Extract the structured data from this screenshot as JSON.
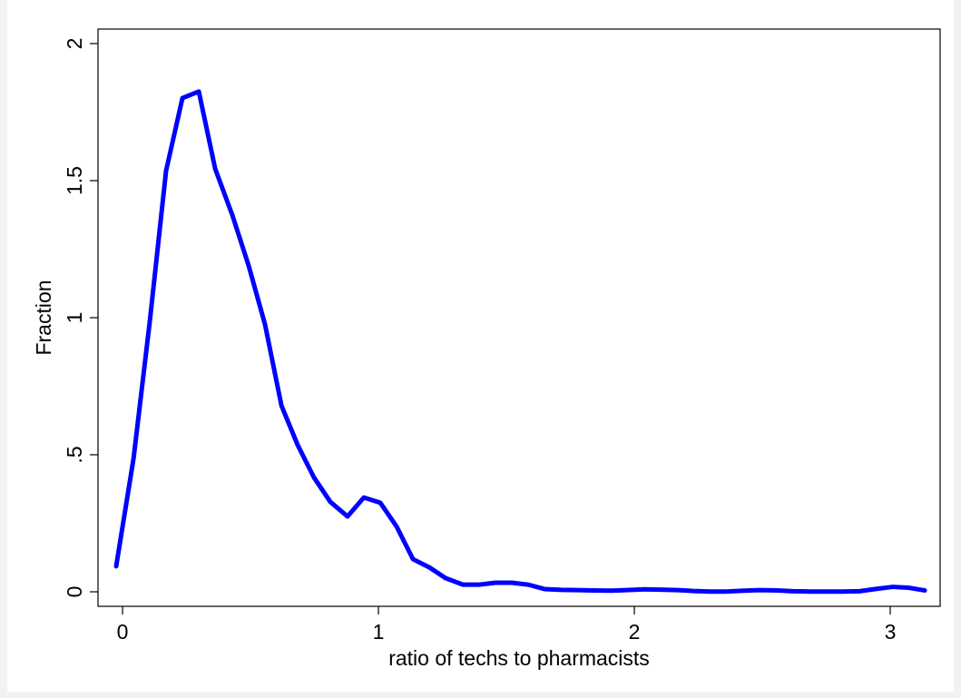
{
  "chart_data": {
    "type": "line",
    "xlabel": "ratio of techs to pharmacists",
    "ylabel": "Fraction",
    "x": [
      -0.025,
      0.043,
      0.106,
      0.17,
      0.234,
      0.298,
      0.362,
      0.429,
      0.493,
      0.557,
      0.621,
      0.684,
      0.748,
      0.812,
      0.879,
      0.943,
      1.007,
      1.071,
      1.135,
      1.199,
      1.262,
      1.33,
      1.394,
      1.457,
      1.521,
      1.585,
      1.649,
      1.716,
      1.78,
      1.84,
      1.91,
      1.97,
      2.04,
      2.1,
      2.17,
      2.23,
      2.3,
      2.36,
      2.43,
      2.49,
      2.56,
      2.62,
      2.68,
      2.75,
      2.81,
      2.88,
      2.94,
      3.01,
      3.07,
      3.135
    ],
    "series": [
      {
        "color": "#0000ff",
        "values": [
          0.093,
          0.487,
          0.983,
          1.536,
          1.801,
          1.825,
          1.543,
          1.374,
          1.189,
          0.974,
          0.679,
          0.536,
          0.417,
          0.328,
          0.275,
          0.344,
          0.325,
          0.238,
          0.119,
          0.089,
          0.05,
          0.026,
          0.026,
          0.033,
          0.033,
          0.026,
          0.01,
          0.007,
          0.006,
          0.005,
          0.004,
          0.006,
          0.009,
          0.008,
          0.006,
          0.003,
          0.001,
          0.001,
          0.004,
          0.006,
          0.005,
          0.002,
          0.001,
          0.001,
          0.001,
          0.002,
          0.01,
          0.018,
          0.015,
          0.005
        ]
      }
    ],
    "xlim": [
      -0.096,
      3.195
    ],
    "xticks": [
      0,
      1,
      2,
      3
    ],
    "ylim": [
      -0.053,
      2.053
    ],
    "yticks": [
      0,
      {
        "value": 0.5,
        "label": ".5"
      },
      1,
      1.5,
      2
    ],
    "grid": false
  }
}
